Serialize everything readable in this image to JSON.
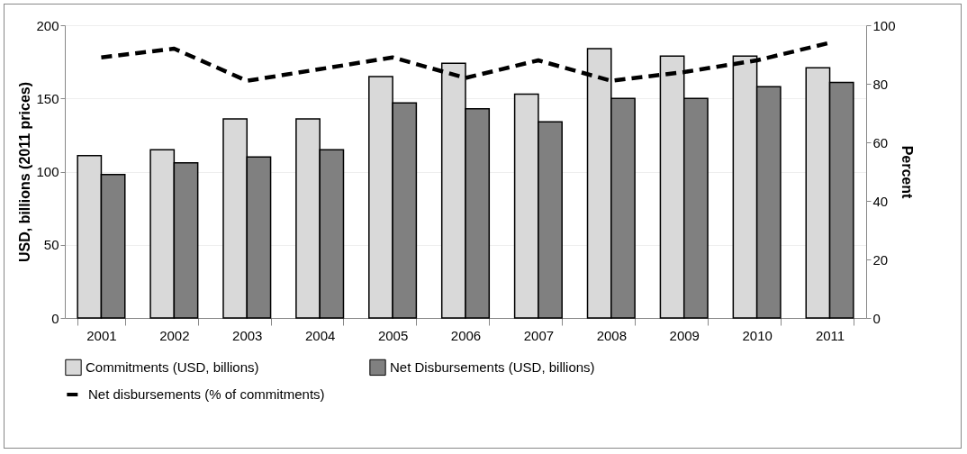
{
  "chart_data": {
    "type": "bar",
    "ylabel": "USD, billions (2011 prices)",
    "y2label": "Percent",
    "categories": [
      "2001",
      "2002",
      "2003",
      "2004",
      "2005",
      "2006",
      "2007",
      "2008",
      "2009",
      "2010",
      "2011"
    ],
    "series": [
      {
        "name": "Commitments (USD, billions)",
        "color": "#d9d9d9",
        "values": [
          111,
          115,
          136,
          136,
          165,
          174,
          153,
          184,
          179,
          179,
          171
        ]
      },
      {
        "name": "Net Disbursements (USD, billions)",
        "color": "#808080",
        "values": [
          98,
          106,
          110,
          115,
          147,
          143,
          134,
          150,
          150,
          158,
          161
        ]
      },
      {
        "name": "Net disbursements (% of commitments)",
        "color": "#000000",
        "type": "line",
        "axis": "y2",
        "line_style": "dashed",
        "values": [
          89,
          92,
          81,
          85,
          89,
          82,
          88,
          81,
          84,
          88,
          94
        ]
      }
    ],
    "ylim": [
      0,
      200
    ],
    "yticks": [
      0,
      50,
      100,
      150,
      200
    ],
    "y2lim": [
      0,
      100
    ],
    "y2ticks": [
      0,
      20,
      40,
      60,
      80,
      100
    ],
    "grid": "y",
    "legend": "bottom"
  }
}
